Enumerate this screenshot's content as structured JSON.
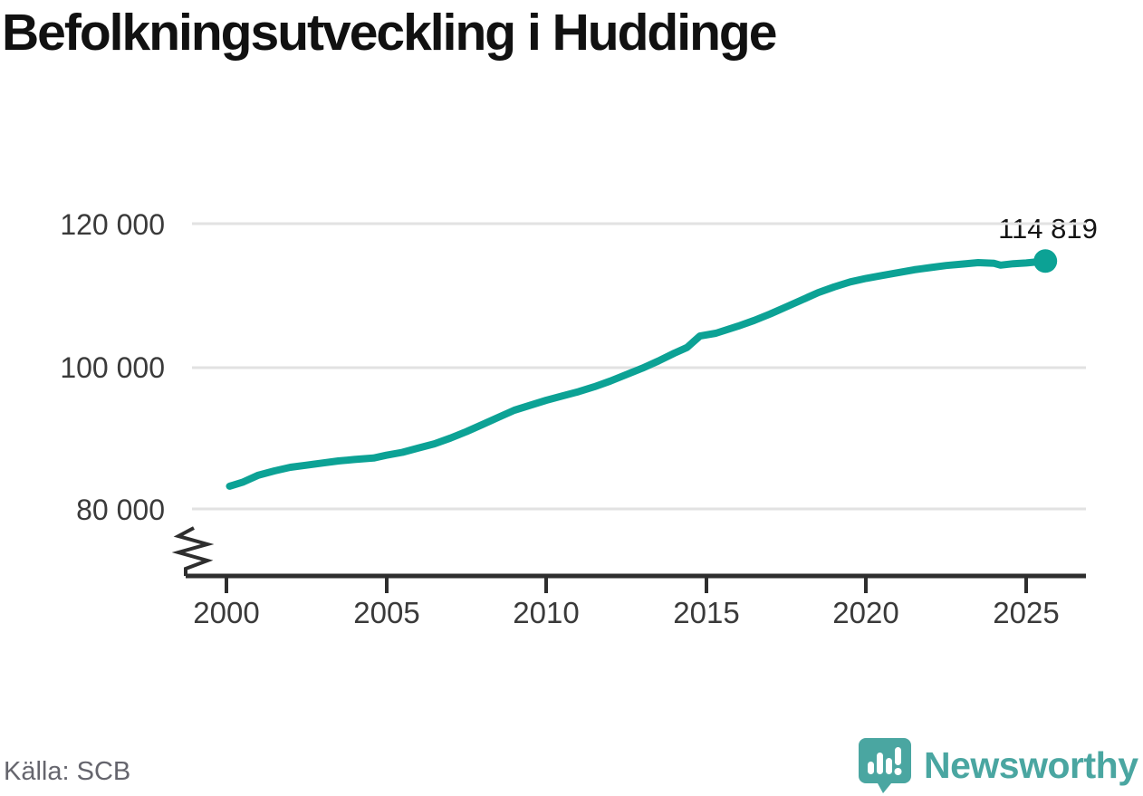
{
  "header": {
    "title": "Befolkningsutveckling i Huddinge"
  },
  "chart_data": {
    "type": "line",
    "title": "Befolkningsutveckling i Huddinge",
    "xlabel": "",
    "ylabel": "",
    "grid": "horizontal-only",
    "axis_break_bottom_left": true,
    "x_ticks": [
      "2000",
      "2005",
      "2010",
      "2015",
      "2020",
      "2025"
    ],
    "y_ticks": [
      {
        "label": "120 000",
        "value": 120000
      },
      {
        "label": "100 000",
        "value": 100000
      },
      {
        "label": "80 000",
        "value": 80000
      }
    ],
    "xlim": [
      1998.9,
      2026.9
    ],
    "ylim": [
      77000,
      124000
    ],
    "series": [
      {
        "name": "Huddinge",
        "x": [
          2000.1,
          2000.5,
          2001,
          2001.5,
          2002,
          2002.5,
          2003,
          2003.5,
          2004,
          2004.6,
          2005,
          2005.5,
          2006,
          2006.5,
          2007,
          2007.5,
          2008,
          2008.5,
          2009,
          2009.5,
          2010,
          2010.5,
          2011,
          2011.5,
          2012,
          2012.5,
          2013,
          2013.5,
          2014,
          2014.4,
          2014.8,
          2015.3,
          2016,
          2016.5,
          2017,
          2017.5,
          2018,
          2018.5,
          2019,
          2019.5,
          2020,
          2020.5,
          2021,
          2021.5,
          2022,
          2022.5,
          2023,
          2023.5,
          2024,
          2024.2,
          2024.6,
          2025,
          2025.6
        ],
        "values": [
          83250,
          83800,
          84800,
          85400,
          85900,
          86200,
          86500,
          86800,
          87000,
          87200,
          87600,
          88000,
          88600,
          89200,
          90000,
          90900,
          91900,
          92900,
          93900,
          94600,
          95300,
          95900,
          96500,
          97200,
          98000,
          98900,
          99800,
          100800,
          101900,
          102700,
          104300,
          104700,
          105700,
          106500,
          107400,
          108400,
          109400,
          110400,
          111200,
          111900,
          112400,
          112800,
          113200,
          113600,
          113900,
          114200,
          114400,
          114600,
          114500,
          114250,
          114450,
          114550,
          114819
        ]
      }
    ],
    "end_point": {
      "label": "114 819",
      "value": 114819,
      "x": 2025.6
    }
  },
  "footer": {
    "source": "Källa: SCB",
    "brand": "Newsworthy",
    "logo_icon": "newsworthy-speech-bubble-barchart-icon"
  },
  "colors": {
    "line": "#0ca295",
    "brand_teal": "#4aa6a1",
    "grid": "#e2e2e2",
    "axis": "#2e2e2e",
    "tick_text": "#3a3a3a",
    "title_text": "#111111",
    "muted_text": "#65656d"
  }
}
